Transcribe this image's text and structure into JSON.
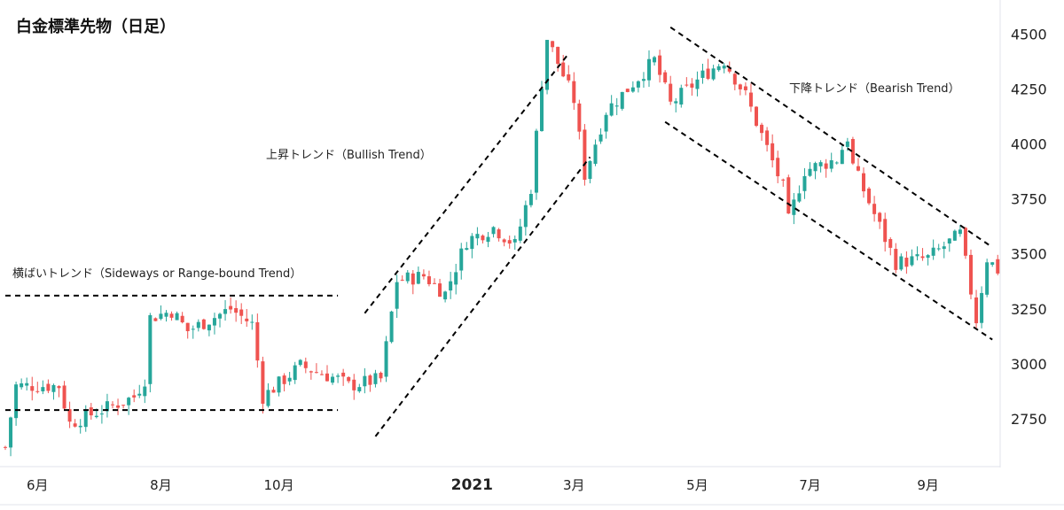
{
  "chart_data": {
    "type": "candlestick",
    "title": "白金標準先物（日足）",
    "ylim": [
      2550,
      4560
    ],
    "y_ticks": [
      2750,
      3000,
      3250,
      3500,
      3750,
      4000,
      4250,
      4500
    ],
    "x_ticks": [
      {
        "label": "6月",
        "index": 6,
        "bold": false
      },
      {
        "label": "8月",
        "index": 29,
        "bold": false
      },
      {
        "label": "10月",
        "index": 51,
        "bold": false
      },
      {
        "label": "2021",
        "index": 87,
        "bold": true
      },
      {
        "label": "3月",
        "index": 106,
        "bold": false
      },
      {
        "label": "5月",
        "index": 129,
        "bold": false
      },
      {
        "label": "7月",
        "index": 150,
        "bold": false
      },
      {
        "label": "9月",
        "index": 172,
        "bold": false
      }
    ],
    "n_candles": 186,
    "anchors": [
      [
        0,
        2620
      ],
      [
        2,
        2900
      ],
      [
        10,
        2900
      ],
      [
        12,
        2730
      ],
      [
        18,
        2790
      ],
      [
        24,
        2850
      ],
      [
        26,
        2930
      ],
      [
        27,
        3210
      ],
      [
        31,
        3240
      ],
      [
        34,
        3150
      ],
      [
        38,
        3200
      ],
      [
        42,
        3250
      ],
      [
        46,
        3180
      ],
      [
        48,
        2850
      ],
      [
        55,
        2990
      ],
      [
        62,
        2930
      ],
      [
        64,
        2900
      ],
      [
        70,
        2930
      ],
      [
        73,
        3380
      ],
      [
        78,
        3400
      ],
      [
        82,
        3320
      ],
      [
        86,
        3560
      ],
      [
        91,
        3620
      ],
      [
        95,
        3540
      ],
      [
        98,
        3800
      ],
      [
        100,
        4280
      ],
      [
        101,
        4480
      ],
      [
        106,
        4200
      ],
      [
        108,
        3860
      ],
      [
        112,
        4150
      ],
      [
        116,
        4250
      ],
      [
        121,
        4380
      ],
      [
        124,
        4180
      ],
      [
        130,
        4310
      ],
      [
        134,
        4380
      ],
      [
        138,
        4220
      ],
      [
        145,
        3800
      ],
      [
        146,
        3650
      ],
      [
        149,
        3880
      ],
      [
        155,
        3930
      ],
      [
        157,
        4030
      ],
      [
        158,
        3900
      ],
      [
        166,
        3460
      ],
      [
        172,
        3480
      ],
      [
        178,
        3590
      ],
      [
        181,
        3200
      ],
      [
        183,
        3480
      ],
      [
        186,
        3400
      ]
    ],
    "trendlines": [
      {
        "name": "sideways-upper",
        "points": [
          [
            0,
            3310
          ],
          [
            62,
            3310
          ]
        ]
      },
      {
        "name": "sideways-lower",
        "points": [
          [
            0,
            2790
          ],
          [
            62,
            2790
          ]
        ]
      },
      {
        "name": "bullish-upper",
        "points": [
          [
            67,
            3230
          ],
          [
            105,
            4410
          ]
        ]
      },
      {
        "name": "bullish-lower",
        "points": [
          [
            69,
            2670
          ],
          [
            109,
            3940
          ]
        ]
      },
      {
        "name": "bearish-upper",
        "points": [
          [
            124,
            4530
          ],
          [
            184,
            3530
          ]
        ]
      },
      {
        "name": "bearish-lower",
        "points": [
          [
            123,
            4100
          ],
          [
            184,
            3110
          ]
        ]
      }
    ],
    "annotations": [
      {
        "name": "sideways-label",
        "text": "横ばいトレンド（Sideways or Range-bound Trend）"
      },
      {
        "name": "bullish-label",
        "text": "上昇トレンド（Bullish Trend）"
      },
      {
        "name": "bearish-label",
        "text": "下降トレンド（Bearish Trend）"
      }
    ],
    "colors": {
      "up": "#26a69a",
      "down": "#ef5350",
      "line": "#000000",
      "grid": "#e0e3eb"
    }
  }
}
